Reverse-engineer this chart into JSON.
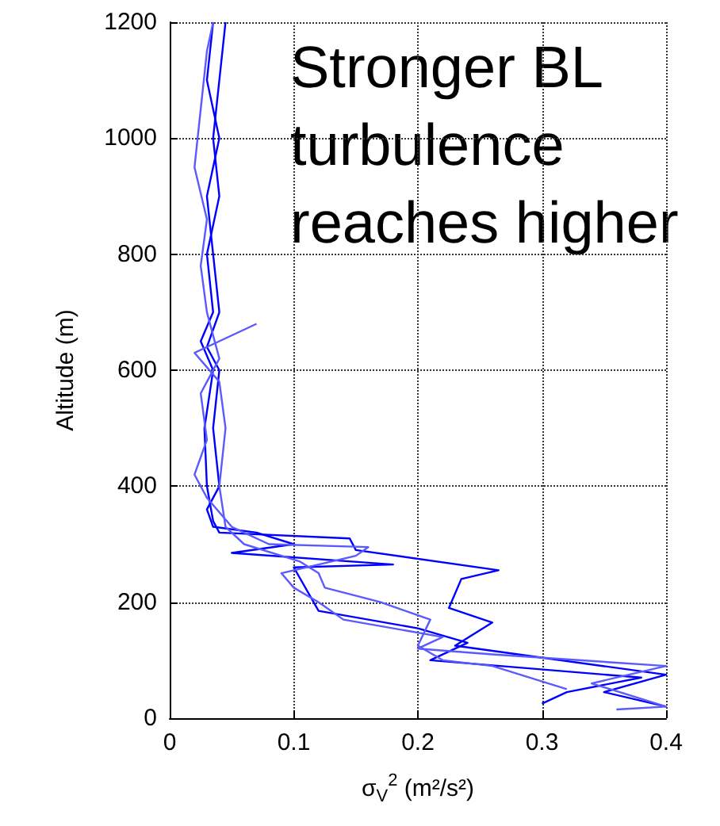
{
  "chart_data": {
    "type": "line",
    "xlabel": "σ$_{V}$$^{2}$ (m²/s²)",
    "ylabel": "Altitude (m)",
    "annotations": [
      "Stronger BL turbulence reaches higher"
    ],
    "xlim": [
      0,
      0.4
    ],
    "xticks": [
      0,
      0.1,
      0.2,
      0.3,
      0.4
    ],
    "ylim": [
      0,
      1200
    ],
    "yticks": [
      0,
      200,
      400,
      600,
      800,
      1000,
      1200
    ],
    "grid": true,
    "marker": "none",
    "line_style": "solid",
    "series": [
      {
        "color": "#0000ff",
        "x": [
          0.4,
          0.35,
          0.4,
          0.23,
          0.26,
          0.225,
          0.235,
          0.265,
          0.15,
          0.145,
          0.04,
          0.035,
          0.03,
          0.028,
          0.035,
          0.025,
          0.035,
          0.03,
          0.04,
          0.035,
          0.04,
          0.045
        ],
        "values": [
          20,
          45,
          75,
          125,
          165,
          190,
          240,
          255,
          290,
          310,
          320,
          340,
          400,
          500,
          600,
          650,
          700,
          800,
          900,
          1000,
          1100,
          1200
        ]
      },
      {
        "color": "#0000ff",
        "x": [
          0.3,
          0.32,
          0.38,
          0.21,
          0.24,
          0.2,
          0.12,
          0.1,
          0.18,
          0.05,
          0.1,
          0.07,
          0.035,
          0.03,
          0.04,
          0.035,
          0.04,
          0.03,
          0.04,
          0.035,
          0.03,
          0.04,
          0.03,
          0.035
        ],
        "values": [
          25,
          45,
          70,
          100,
          130,
          155,
          185,
          260,
          265,
          285,
          300,
          320,
          330,
          360,
          400,
          500,
          600,
          640,
          700,
          800,
          900,
          1000,
          1100,
          1200
        ]
      },
      {
        "color": "#5a5aff",
        "x": [
          0.36,
          0.4,
          0.34,
          0.4,
          0.26,
          0.2,
          0.22,
          0.14,
          0.12,
          0.1,
          0.09,
          0.15,
          0.16,
          0.08,
          0.05,
          0.03,
          0.02,
          0.03,
          0.025,
          0.04,
          0.03,
          0.025,
          0.03,
          0.02,
          0.025,
          0.03,
          0.035
        ],
        "values": [
          15,
          20,
          60,
          90,
          110,
          120,
          140,
          170,
          200,
          225,
          250,
          280,
          295,
          300,
          330,
          380,
          420,
          480,
          560,
          620,
          700,
          780,
          860,
          950,
          1050,
          1150,
          1200
        ]
      },
      {
        "color": "#5a5aff",
        "x": [
          0.32,
          0.26,
          0.22,
          0.2,
          0.21,
          0.17,
          0.125,
          0.12,
          0.105,
          0.06,
          0.045,
          0.04,
          0.045,
          0.04,
          0.02,
          0.07
        ],
        "values": [
          50,
          90,
          100,
          125,
          170,
          200,
          225,
          250,
          270,
          300,
          330,
          400,
          500,
          580,
          630,
          680
        ]
      }
    ]
  }
}
